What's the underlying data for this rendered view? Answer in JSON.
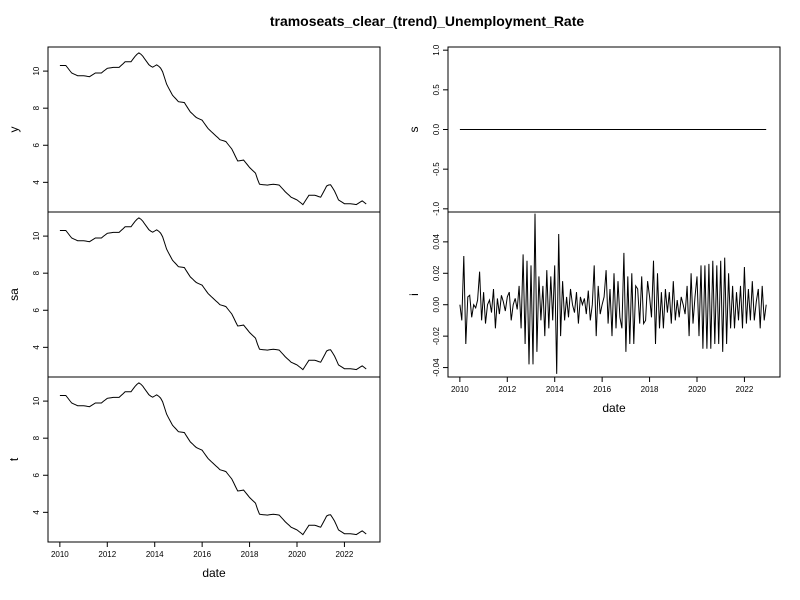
{
  "chart_data": {
    "type": "line",
    "title": "tramoseats_clear_(trend)_Unemployment_Rate",
    "xlabel": "date",
    "xlim": [
      2009.5,
      2023.5
    ],
    "x_ticks": [
      2010,
      2012,
      2014,
      2016,
      2018,
      2020,
      2022
    ],
    "x_tick_labels": [
      "2010",
      "2012",
      "2014",
      "2016",
      "2018",
      "2020",
      "2022"
    ],
    "trend_knots": [
      [
        2010.0,
        10.3
      ],
      [
        2010.25,
        10.3
      ],
      [
        2010.5,
        9.9
      ],
      [
        2010.75,
        9.75
      ],
      [
        2011.0,
        9.75
      ],
      [
        2011.25,
        9.7
      ],
      [
        2011.5,
        9.9
      ],
      [
        2011.75,
        9.9
      ],
      [
        2012.0,
        10.15
      ],
      [
        2012.25,
        10.2
      ],
      [
        2012.5,
        10.2
      ],
      [
        2012.75,
        10.5
      ],
      [
        2013.0,
        10.5
      ],
      [
        2013.2,
        10.85
      ],
      [
        2013.35,
        11.0
      ],
      [
        2013.5,
        10.8
      ],
      [
        2013.75,
        10.35
      ],
      [
        2013.9,
        10.2
      ],
      [
        2014.1,
        10.35
      ],
      [
        2014.3,
        10.1
      ],
      [
        2014.5,
        9.3
      ],
      [
        2014.75,
        8.7
      ],
      [
        2015.0,
        8.35
      ],
      [
        2015.25,
        8.3
      ],
      [
        2015.5,
        7.8
      ],
      [
        2015.75,
        7.5
      ],
      [
        2016.0,
        7.35
      ],
      [
        2016.25,
        6.9
      ],
      [
        2016.5,
        6.6
      ],
      [
        2016.75,
        6.3
      ],
      [
        2017.0,
        6.2
      ],
      [
        2017.25,
        5.8
      ],
      [
        2017.5,
        5.15
      ],
      [
        2017.75,
        5.2
      ],
      [
        2018.0,
        4.8
      ],
      [
        2018.25,
        4.5
      ],
      [
        2018.4,
        3.9
      ],
      [
        2018.75,
        3.85
      ],
      [
        2019.0,
        3.9
      ],
      [
        2019.25,
        3.85
      ],
      [
        2019.5,
        3.5
      ],
      [
        2019.75,
        3.2
      ],
      [
        2020.0,
        3.05
      ],
      [
        2020.25,
        2.8
      ],
      [
        2020.5,
        3.3
      ],
      [
        2020.75,
        3.3
      ],
      [
        2021.0,
        3.2
      ],
      [
        2021.25,
        3.8
      ],
      [
        2021.4,
        3.9
      ],
      [
        2021.6,
        3.5
      ],
      [
        2021.75,
        3.05
      ],
      [
        2022.0,
        2.85
      ],
      [
        2022.25,
        2.85
      ],
      [
        2022.5,
        2.8
      ],
      [
        2022.75,
        3.0
      ],
      [
        2023.0,
        2.75
      ]
    ],
    "panels": [
      {
        "name": "y",
        "ylabel": "y",
        "ylim": [
          2.4,
          11.3
        ],
        "y_ticks": [
          4,
          6,
          8,
          10
        ],
        "y_tick_labels": [
          "4",
          "6",
          "8",
          "10"
        ]
      },
      {
        "name": "sa",
        "ylabel": "sa",
        "ylim": [
          2.4,
          11.3
        ],
        "y_ticks": [
          4,
          6,
          8,
          10
        ],
        "y_tick_labels": [
          "4",
          "6",
          "8",
          "10"
        ]
      },
      {
        "name": "t",
        "ylabel": "t",
        "ylim": [
          2.4,
          11.3
        ],
        "y_ticks": [
          4,
          6,
          8,
          10
        ],
        "y_tick_labels": [
          "4",
          "6",
          "8",
          "10"
        ]
      },
      {
        "name": "s",
        "ylabel": "s",
        "ylim": [
          -1.04,
          1.04
        ],
        "y_ticks": [
          -1.0,
          -0.5,
          0.0,
          0.5,
          1.0
        ],
        "y_tick_labels": [
          "-1.0",
          "-0.5",
          "0.0",
          "0.5",
          "1.0"
        ],
        "values_constant": 0.0
      },
      {
        "name": "i",
        "ylabel": "i",
        "ylim": [
          -0.046,
          0.059
        ],
        "y_ticks": [
          -0.04,
          -0.02,
          0.0,
          0.02,
          0.04
        ],
        "y_tick_labels": [
          "-0.04",
          "-0.02",
          "0.00",
          "0.02",
          "0.04"
        ]
      }
    ],
    "irregular": [
      0.0,
      -0.01,
      0.031,
      -0.025,
      0.005,
      0.006,
      -0.008,
      0.0,
      -0.002,
      0.003,
      0.021,
      -0.01,
      0.008,
      -0.012,
      0.0,
      0.003,
      -0.005,
      0.01,
      -0.015,
      0.004,
      -0.006,
      0.006,
      0.002,
      -0.004,
      0.005,
      0.008,
      -0.01,
      0.0,
      0.004,
      -0.003,
      0.012,
      -0.015,
      0.032,
      -0.025,
      0.028,
      -0.038,
      0.025,
      -0.038,
      0.058,
      -0.03,
      0.018,
      -0.01,
      0.012,
      -0.02,
      0.022,
      -0.015,
      0.018,
      -0.01,
      0.025,
      -0.044,
      0.045,
      -0.02,
      0.015,
      -0.01,
      0.005,
      -0.008,
      0.01,
      0.0,
      -0.005,
      0.008,
      -0.012,
      0.005,
      0.0,
      0.004,
      -0.006,
      0.009,
      -0.01,
      0.0,
      0.025,
      -0.02,
      0.012,
      -0.006,
      0.0,
      0.005,
      0.022,
      -0.012,
      0.01,
      -0.02,
      0.02,
      -0.015,
      0.015,
      -0.008,
      -0.015,
      0.033,
      -0.03,
      0.018,
      -0.025,
      0.02,
      -0.025,
      0.012,
      0.01,
      -0.012,
      0.018,
      -0.012,
      -0.01,
      0.015,
      0.005,
      -0.008,
      0.028,
      -0.025,
      0.02,
      -0.015,
      0.008,
      -0.015,
      0.01,
      -0.005,
      0.008,
      -0.012,
      0.015,
      -0.01,
      0.003,
      -0.008,
      0.005,
      0.0,
      -0.006,
      0.012,
      -0.02,
      0.02,
      -0.012,
      0.005,
      0.018,
      -0.02,
      0.025,
      -0.028,
      0.025,
      -0.028,
      0.026,
      -0.028,
      0.028,
      -0.025,
      0.025,
      -0.025,
      0.028,
      -0.03,
      0.03,
      -0.025,
      0.02,
      -0.015,
      0.012,
      -0.015,
      0.008,
      -0.01,
      0.012,
      -0.015,
      0.024,
      -0.012,
      0.01,
      -0.01,
      0.015,
      -0.01,
      0.002,
      0.01,
      -0.015,
      0.012,
      -0.01,
      0.0
    ]
  }
}
